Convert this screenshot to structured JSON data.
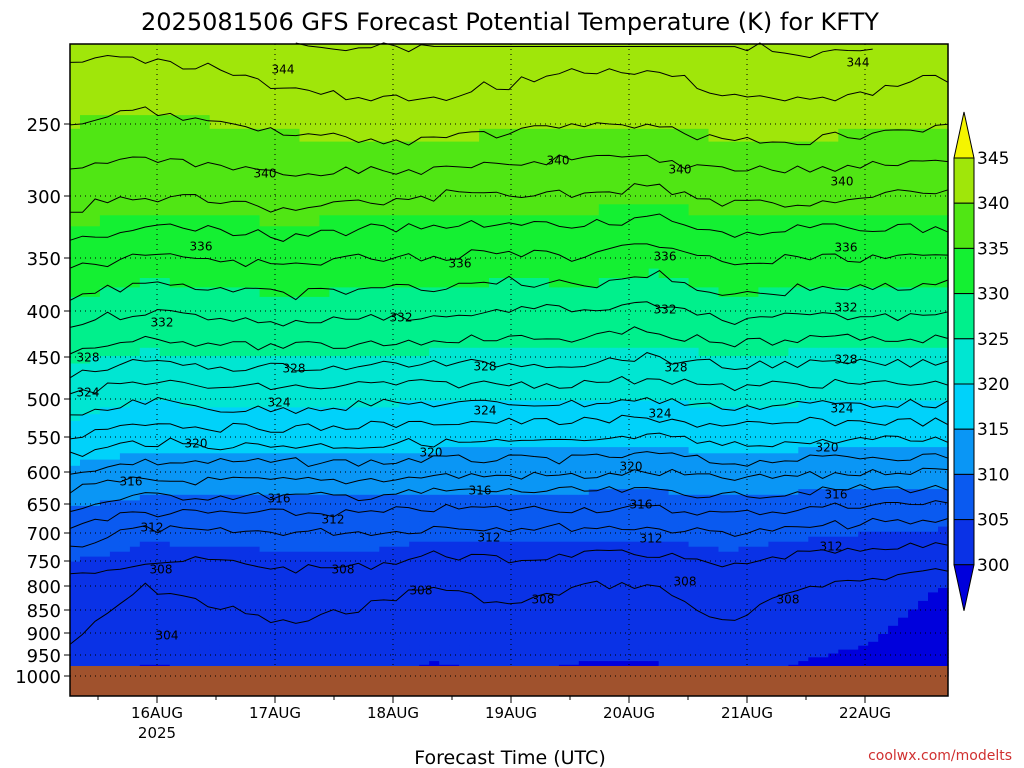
{
  "chart_data": {
    "type": "heatmap",
    "title": "2025081506 GFS Forecast Potential Temperature (K) for KFTY",
    "xlabel": "Forecast Time (UTC)",
    "ylabel": "",
    "x_ticks": [
      "16AUG",
      "17AUG",
      "18AUG",
      "19AUG",
      "20AUG",
      "21AUG",
      "22AUG"
    ],
    "x_year": "2025",
    "x_range": [
      "2025-08-15 06Z",
      "2025-08-22 21Z"
    ],
    "y_axis": "pressure (hPa), reversed",
    "y_ticks": [
      250,
      300,
      350,
      400,
      450,
      500,
      550,
      600,
      650,
      700,
      750,
      800,
      850,
      900,
      950,
      1000
    ],
    "y_range": [
      200,
      1000
    ],
    "grid": true,
    "colorbar": {
      "ticks": [
        300,
        305,
        310,
        315,
        320,
        325,
        330,
        335,
        340,
        345
      ],
      "bands": [
        {
          "from": 295,
          "to": 300,
          "color": "#0000dc"
        },
        {
          "from": 300,
          "to": 305,
          "color": "#0a32e6"
        },
        {
          "from": 305,
          "to": 310,
          "color": "#0a5af0"
        },
        {
          "from": 310,
          "to": 315,
          "color": "#0a96f5"
        },
        {
          "from": 315,
          "to": 320,
          "color": "#00d2fa"
        },
        {
          "from": 320,
          "to": 325,
          "color": "#00e6d2"
        },
        {
          "from": 325,
          "to": 330,
          "color": "#00f08c"
        },
        {
          "from": 330,
          "to": 335,
          "color": "#14f032"
        },
        {
          "from": 335,
          "to": 340,
          "color": "#50e614"
        },
        {
          "from": 340,
          "to": 345,
          "color": "#a0e60a"
        },
        {
          "from": 345,
          "to": 350,
          "color": "#f5f500"
        }
      ],
      "extend": "both"
    },
    "contour_interval": 2,
    "ground_color": "#a0522d",
    "contour_labels": [
      344,
      344,
      340,
      340,
      340,
      340,
      336,
      336,
      336,
      336,
      332,
      332,
      332,
      332,
      328,
      328,
      328,
      328,
      328,
      324,
      324,
      324,
      324,
      324,
      320,
      320,
      320,
      320,
      316,
      316,
      316,
      316,
      316,
      312,
      312,
      312,
      312,
      312,
      308,
      308,
      308,
      308,
      308,
      308,
      304
    ],
    "series": [
      {
        "values": [
          342.5,
          342.5,
          343,
          344,
          344,
          344,
          343.5,
          343,
          343,
          344,
          344.5,
          344,
          343.5
        ]
      },
      {
        "values": [
          340,
          339.5,
          340,
          340.5,
          341,
          341,
          340.5,
          340,
          340,
          341,
          341,
          340.5,
          340
        ]
      },
      {
        "values": [
          337,
          336,
          336.5,
          337,
          336.5,
          336,
          336,
          336,
          335.5,
          336.5,
          336.5,
          336,
          336
        ]
      },
      {
        "values": [
          333,
          331.5,
          332,
          332.5,
          332,
          332,
          331.5,
          332,
          331,
          332.5,
          332,
          332,
          332
        ]
      },
      {
        "values": [
          329,
          328,
          328.5,
          329,
          328.5,
          328.5,
          328,
          328,
          327.5,
          329,
          328.5,
          328.5,
          328
        ]
      },
      {
        "values": [
          325.5,
          324.5,
          325,
          325,
          325,
          324.5,
          324.5,
          324.5,
          324,
          325,
          324.5,
          324.5,
          324.5
        ]
      },
      {
        "values": [
          322,
          320,
          321,
          321,
          320.5,
          320.5,
          320.5,
          320.5,
          320,
          321,
          320.5,
          320.5,
          320.5
        ]
      },
      {
        "values": [
          318,
          316.5,
          317,
          317,
          317,
          316.5,
          316.5,
          316.5,
          316,
          317,
          316.5,
          316.5,
          316.5
        ]
      },
      {
        "values": [
          314,
          313,
          313,
          313,
          313,
          312.5,
          312.5,
          312.5,
          312,
          313,
          312.5,
          312,
          312
        ]
      },
      {
        "values": [
          310.5,
          309,
          309,
          309,
          309,
          308.5,
          308.5,
          308.5,
          308.5,
          309,
          308.5,
          308,
          308
        ]
      },
      {
        "values": [
          307,
          305.5,
          306,
          306,
          306,
          305.5,
          305.5,
          305.5,
          305.5,
          306,
          305.5,
          305,
          304.5
        ]
      },
      {
        "values": [
          305,
          304,
          304,
          304.5,
          304.5,
          303.5,
          304,
          303.5,
          303.5,
          304.5,
          303.5,
          303.5,
          303
        ]
      },
      {
        "values": [
          303.5,
          302,
          302.5,
          303,
          302.5,
          302,
          302.5,
          302,
          302,
          303,
          302,
          301.5,
          300
        ]
      }
    ],
    "series_levels": [
      200,
      250,
      300,
      350,
      400,
      450,
      500,
      550,
      600,
      650,
      700,
      750,
      800
    ],
    "series_times": [
      "15AUG06Z",
      "15AUG21Z",
      "16AUG12Z",
      "17AUG03Z",
      "17AUG18Z",
      "18AUG09Z",
      "19AUG00Z",
      "19AUG15Z",
      "20AUG06Z",
      "20AUG21Z",
      "21AUG12Z",
      "22AUG03Z",
      "22AUG18Z"
    ]
  },
  "footer": {
    "credit": "coolwx.com/modelts"
  },
  "colors": {
    "credit": "#d03030",
    "contour": "#000000",
    "grid": "#000000"
  }
}
